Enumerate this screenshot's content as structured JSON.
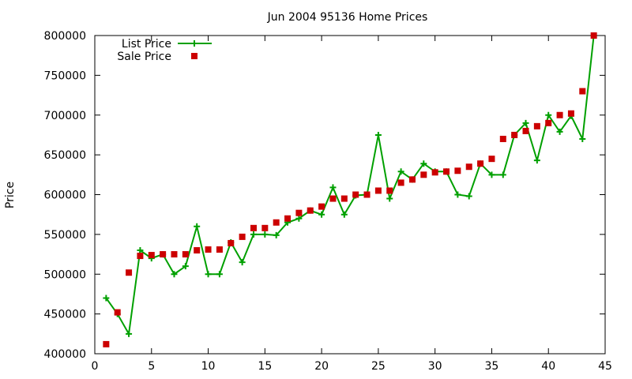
{
  "chart_data": {
    "type": "line",
    "title": "Jun 2004 95136 Home Prices",
    "xlabel": "",
    "ylabel": "Price",
    "xlim": [
      0,
      45
    ],
    "ylim": [
      400000,
      800000
    ],
    "x_ticks": [
      0,
      5,
      10,
      15,
      20,
      25,
      30,
      35,
      40,
      45
    ],
    "y_ticks": [
      400000,
      450000,
      500000,
      550000,
      600000,
      650000,
      700000,
      750000,
      800000
    ],
    "legend_position": "top-left",
    "grid": false,
    "series": [
      {
        "name": "List Price",
        "style": "line-with-plus-markers",
        "color": "#00a000",
        "x": [
          1,
          2,
          3,
          4,
          5,
          6,
          7,
          8,
          9,
          10,
          11,
          12,
          13,
          14,
          15,
          16,
          17,
          18,
          19,
          20,
          21,
          22,
          23,
          24,
          25,
          26,
          27,
          28,
          29,
          30,
          31,
          32,
          33,
          34,
          35,
          36,
          37,
          38,
          39,
          40,
          41,
          42,
          43,
          44
        ],
        "y": [
          470000,
          450000,
          425000,
          530000,
          520000,
          525000,
          500000,
          510000,
          560000,
          500000,
          500000,
          540000,
          515000,
          550000,
          550000,
          549000,
          565000,
          570000,
          580000,
          575000,
          609000,
          575000,
          599000,
          600000,
          675000,
          595000,
          629000,
          619000,
          639000,
          629000,
          629000,
          600000,
          598000,
          639000,
          625000,
          625000,
          675000,
          690000,
          643000,
          700000,
          679000,
          699000,
          670000,
          800000
        ]
      },
      {
        "name": "Sale Price",
        "style": "square-markers",
        "color": "#cc0000",
        "x": [
          1,
          2,
          3,
          4,
          5,
          6,
          7,
          8,
          9,
          10,
          11,
          12,
          13,
          14,
          15,
          16,
          17,
          18,
          19,
          20,
          21,
          22,
          23,
          24,
          25,
          26,
          27,
          28,
          29,
          30,
          31,
          32,
          33,
          34,
          35,
          36,
          37,
          38,
          39,
          40,
          41,
          42,
          43,
          44
        ],
        "y": [
          412000,
          452000,
          502000,
          523000,
          524000,
          525000,
          525000,
          525000,
          530000,
          531000,
          531000,
          539000,
          547000,
          558000,
          558000,
          565000,
          570000,
          577000,
          580000,
          585000,
          595000,
          595000,
          600000,
          600000,
          605000,
          605000,
          615000,
          619000,
          625000,
          628000,
          629000,
          630000,
          635000,
          639000,
          645000,
          670000,
          675000,
          680000,
          686000,
          690000,
          700000,
          702000,
          730000,
          800000
        ]
      }
    ]
  }
}
